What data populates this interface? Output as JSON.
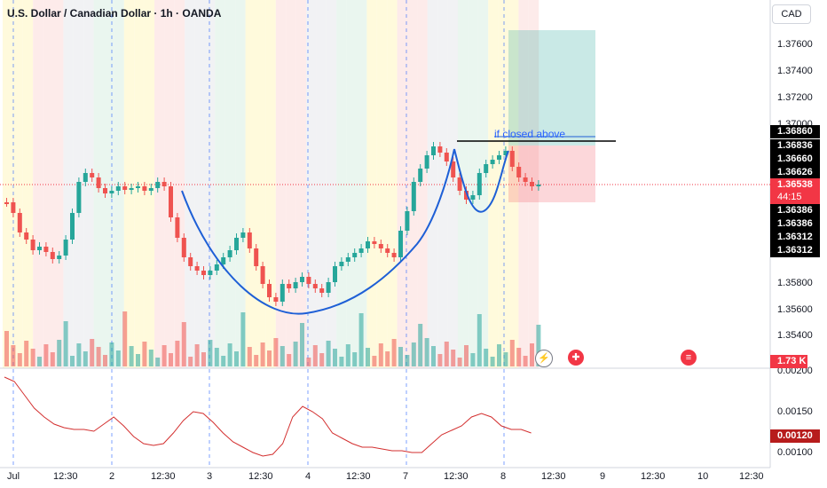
{
  "header": {
    "title": "U.S. Dollar / Canadian Dollar · 1h · OANDA",
    "currency": "CAD"
  },
  "price_axis": {
    "ticks": [
      "1.37600",
      "1.37400",
      "1.37200",
      "1.37000",
      "1.35800",
      "1.35600",
      "1.35400",
      "0.00200"
    ],
    "labels": [
      {
        "text": "1.36860",
        "color": "#000000"
      },
      {
        "text": "1.36836",
        "color": "#000000"
      },
      {
        "text": "1.36660",
        "color": "#000000"
      },
      {
        "text": "1.36626",
        "color": "#000000"
      },
      {
        "text": "1.36538",
        "color": "#f23645"
      },
      {
        "text": "44:15",
        "color": "#f23645"
      },
      {
        "text": "1.36386",
        "color": "#000000"
      },
      {
        "text": "1.36386",
        "color": "#000000"
      },
      {
        "text": "1.36312",
        "color": "#000000"
      },
      {
        "text": "1.36312",
        "color": "#000000"
      }
    ],
    "volume_label": "1.73 K"
  },
  "indicator_axis": {
    "ticks": [
      "0.00150",
      "0.00100"
    ],
    "current": "0.00120",
    "current_color": "#b71c1c"
  },
  "time_axis": [
    "Jul",
    "12:30",
    "2",
    "12:30",
    "3",
    "12:30",
    "4",
    "12:30",
    "7",
    "12:30",
    "8",
    "12:30",
    "9",
    "12:30",
    "10",
    "12:30"
  ],
  "annotation": {
    "text": "if closed above"
  },
  "events": [
    {
      "name": "lightning-icon",
      "glyph": "⚡",
      "color": "#787b86"
    },
    {
      "name": "canada-flag-icon",
      "glyph": "✚",
      "color": "#f23645"
    },
    {
      "name": "us-flag-icon",
      "glyph": "≡",
      "color": "#f23645"
    }
  ],
  "colors": {
    "up": "#26a69a",
    "down": "#ef5350",
    "pattern": "#1e5fd6",
    "indicator": "#d32f2f"
  }
}
